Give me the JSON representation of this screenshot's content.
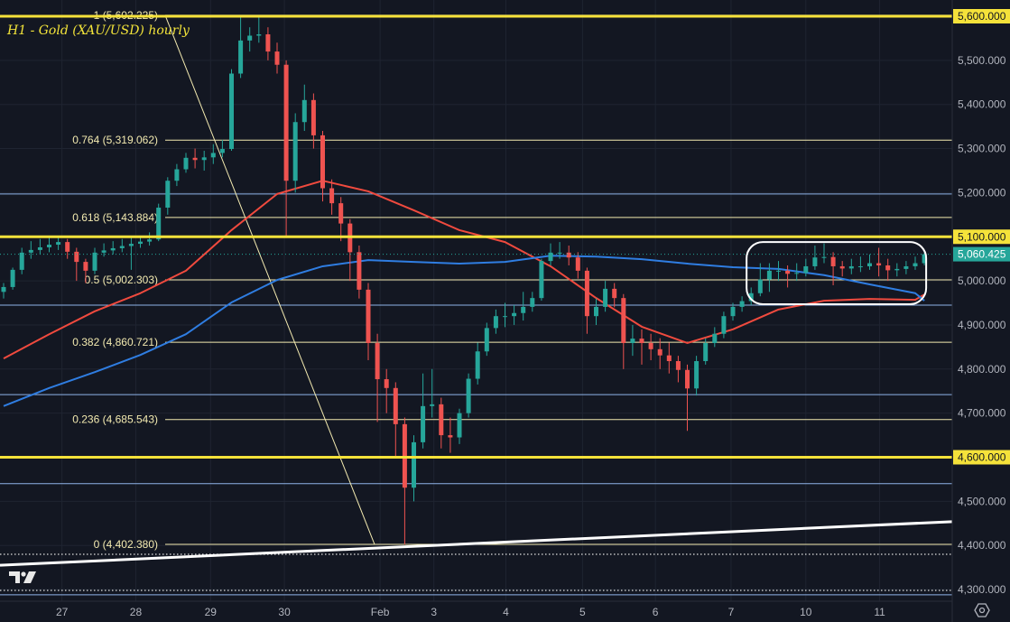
{
  "chart_data": {
    "type": "candlestick",
    "title": "H1 - Gold (XAU/USD) hourly",
    "ylim": [
      4280,
      5630
    ],
    "y_ticks": [
      5600,
      5500,
      5400,
      5300,
      5200,
      5100,
      5000,
      4900,
      4800,
      4700,
      4600,
      4500,
      4400,
      4300
    ],
    "y_tick_labels": [
      "5,600.000",
      "5,500.000",
      "5,400.000",
      "5,300.000",
      "5,200.000",
      "5,100.000",
      "5,000.000",
      "4,900.000",
      "4,800.000",
      "4,700.000",
      "4,600.000",
      "4,500.000",
      "4,400.000",
      "4,300.000"
    ],
    "x_ticks": [
      {
        "label": "27",
        "bar": 6.4
      },
      {
        "label": "28",
        "bar": 14.5
      },
      {
        "label": "29",
        "bar": 22.7
      },
      {
        "label": "30",
        "bar": 30.8
      },
      {
        "label": "Feb",
        "bar": 41.3
      },
      {
        "label": "3",
        "bar": 47.2
      },
      {
        "label": "4",
        "bar": 55.1
      },
      {
        "label": "5",
        "bar": 63.5
      },
      {
        "label": "6",
        "bar": 71.5
      },
      {
        "label": "7",
        "bar": 79.8
      },
      {
        "label": "10",
        "bar": 88
      },
      {
        "label": "11",
        "bar": 96.1
      }
    ],
    "grid": true,
    "colors": {
      "background": "#131722",
      "up": "#26a69a",
      "down": "#ef5350",
      "grid": "#1f2431",
      "axis_text": "#b2b5be",
      "level": "#f5e23a",
      "fib": "#f3eab0",
      "blue_level": "#8fb3e8",
      "ma_red": "#f04a3e",
      "ma_blue": "#2f7de1",
      "trend": "#ffffff",
      "last_price": "#26a69a"
    },
    "ohlc": [
      [
        4975,
        4995,
        4960,
        4986
      ],
      [
        4986,
        5030,
        4980,
        5025
      ],
      [
        5025,
        5075,
        5015,
        5064
      ],
      [
        5064,
        5090,
        5050,
        5070
      ],
      [
        5070,
        5095,
        5060,
        5076
      ],
      [
        5076,
        5098,
        5065,
        5082
      ],
      [
        5082,
        5100,
        5070,
        5088
      ],
      [
        5088,
        5095,
        5050,
        5066
      ],
      [
        5066,
        5075,
        5000,
        5043
      ],
      [
        5043,
        5050,
        4995,
        5023
      ],
      [
        5023,
        5075,
        5015,
        5064
      ],
      [
        5064,
        5085,
        5055,
        5069
      ],
      [
        5069,
        5090,
        5060,
        5074
      ],
      [
        5074,
        5095,
        5065,
        5079
      ],
      [
        5079,
        5100,
        5025,
        5084
      ],
      [
        5084,
        5100,
        5075,
        5089
      ],
      [
        5089,
        5110,
        5080,
        5094
      ],
      [
        5094,
        5175,
        5090,
        5166
      ],
      [
        5166,
        5235,
        5150,
        5227
      ],
      [
        5227,
        5265,
        5215,
        5253
      ],
      [
        5253,
        5290,
        5245,
        5279
      ],
      [
        5279,
        5300,
        5255,
        5274
      ],
      [
        5274,
        5295,
        5250,
        5280
      ],
      [
        5280,
        5310,
        5265,
        5290
      ],
      [
        5290,
        5320,
        5280,
        5299
      ],
      [
        5299,
        5480,
        5295,
        5470
      ],
      [
        5470,
        5600,
        5460,
        5545
      ],
      [
        5545,
        5575,
        5520,
        5556
      ],
      [
        5556,
        5602,
        5540,
        5559
      ],
      [
        5559,
        5575,
        5500,
        5520
      ],
      [
        5520,
        5540,
        5470,
        5490
      ],
      [
        5490,
        5500,
        5100,
        5227
      ],
      [
        5227,
        5380,
        5200,
        5360
      ],
      [
        5360,
        5445,
        5340,
        5410
      ],
      [
        5410,
        5425,
        5300,
        5330
      ],
      [
        5330,
        5340,
        5180,
        5210
      ],
      [
        5210,
        5230,
        5150,
        5176
      ],
      [
        5176,
        5190,
        5090,
        5130
      ],
      [
        5130,
        5140,
        5000,
        5065
      ],
      [
        5065,
        5080,
        4960,
        4980
      ],
      [
        4980,
        4995,
        4820,
        4859
      ],
      [
        4859,
        4880,
        4680,
        4777
      ],
      [
        4777,
        4800,
        4700,
        4757
      ],
      [
        4757,
        4770,
        4600,
        4675
      ],
      [
        4675,
        4690,
        4402,
        4531
      ],
      [
        4531,
        4650,
        4500,
        4634
      ],
      [
        4634,
        4790,
        4620,
        4716
      ],
      [
        4716,
        4800,
        4690,
        4720
      ],
      [
        4720,
        4735,
        4620,
        4650
      ],
      [
        4650,
        4690,
        4610,
        4645
      ],
      [
        4645,
        4710,
        4630,
        4700
      ],
      [
        4700,
        4790,
        4690,
        4778
      ],
      [
        4778,
        4860,
        4765,
        4840
      ],
      [
        4840,
        4905,
        4830,
        4893
      ],
      [
        4893,
        4935,
        4880,
        4920
      ],
      [
        4920,
        4950,
        4895,
        4920
      ],
      [
        4920,
        4945,
        4900,
        4927
      ],
      [
        4927,
        4975,
        4910,
        4941
      ],
      [
        4941,
        4975,
        4930,
        4961
      ],
      [
        4961,
        5050,
        4955,
        5045
      ],
      [
        5045,
        5085,
        5035,
        5064
      ],
      [
        5064,
        5088,
        5050,
        5064
      ],
      [
        5064,
        5080,
        5035,
        5053
      ],
      [
        5053,
        5065,
        5005,
        5023
      ],
      [
        5023,
        5030,
        4880,
        4920
      ],
      [
        4920,
        4960,
        4900,
        4941
      ],
      [
        4941,
        5000,
        4930,
        4982
      ],
      [
        4982,
        4995,
        4940,
        4961
      ],
      [
        4961,
        4970,
        4800,
        4859
      ],
      [
        4859,
        4900,
        4830,
        4869
      ],
      [
        4869,
        4890,
        4810,
        4859
      ],
      [
        4859,
        4880,
        4820,
        4845
      ],
      [
        4845,
        4870,
        4800,
        4831
      ],
      [
        4831,
        4860,
        4790,
        4818
      ],
      [
        4818,
        4830,
        4770,
        4798
      ],
      [
        4798,
        4810,
        4660,
        4756
      ],
      [
        4756,
        4830,
        4740,
        4818
      ],
      [
        4818,
        4870,
        4810,
        4859
      ],
      [
        4859,
        4895,
        4850,
        4880
      ],
      [
        4880,
        4930,
        4870,
        4920
      ],
      [
        4920,
        4950,
        4910,
        4941
      ],
      [
        4941,
        4965,
        4930,
        4954
      ],
      [
        4954,
        4985,
        4945,
        4972
      ],
      [
        4972,
        5040,
        4965,
        5003
      ],
      [
        5003,
        5040,
        4975,
        5023
      ],
      [
        5023,
        5045,
        5000,
        5023
      ],
      [
        5023,
        5035,
        4985,
        5016
      ],
      [
        5016,
        5040,
        5000,
        5018
      ],
      [
        5018,
        5050,
        5010,
        5033
      ],
      [
        5033,
        5080,
        5025,
        5053
      ],
      [
        5053,
        5085,
        5040,
        5054
      ],
      [
        5054,
        5065,
        4990,
        5033
      ],
      [
        5033,
        5045,
        5010,
        5028
      ],
      [
        5028,
        5050,
        5015,
        5033
      ],
      [
        5033,
        5055,
        5020,
        5033
      ],
      [
        5033,
        5060,
        5025,
        5040
      ],
      [
        5040,
        5075,
        5010,
        5035
      ],
      [
        5035,
        5050,
        5000,
        5024
      ],
      [
        5024,
        5040,
        5010,
        5027
      ],
      [
        5027,
        5045,
        5015,
        5033
      ],
      [
        5033,
        5055,
        5025,
        5040
      ],
      [
        5040,
        5068,
        5035,
        5060.425
      ]
    ],
    "moving_averages": [
      {
        "color": "#f04a3e",
        "every_bars": 5,
        "values": [
          4824,
          4879,
          4931,
          4972,
          5023,
          5115,
          5197,
          5227,
          5203,
          5160,
          5115,
          5088,
          5033,
          4961,
          4896,
          4859,
          4890,
          4935,
          4955,
          4959,
          4957,
          4969
        ]
      },
      {
        "color": "#2f7de1",
        "every_bars": 5,
        "values": [
          4716,
          4757,
          4793,
          4832,
          4879,
          4951,
          5002,
          5033,
          5047,
          5043,
          5039,
          5043,
          5057,
          5055,
          5049,
          5039,
          5031,
          5027,
          5013,
          4992,
          4972,
          4955
        ]
      }
    ],
    "key_levels": [
      {
        "price": 5600,
        "label": "5,600.000"
      },
      {
        "price": 5100,
        "label": "5,100.000"
      },
      {
        "price": 4600,
        "label": "4,600.000"
      }
    ],
    "blue_levels": [
      5197,
      4945,
      4742,
      4540,
      4288
    ],
    "dotted_levels": [
      4380,
      4298
    ],
    "fibonacci": {
      "from_bar": 18,
      "to_bar": 41,
      "levels": [
        {
          "ratio": "1",
          "price": 5602.225,
          "label": "1 (5,602.225)"
        },
        {
          "ratio": "0.764",
          "price": 5319.062,
          "label": "0.764 (5,319.062)"
        },
        {
          "ratio": "0.618",
          "price": 5143.884,
          "label": "0.618 (5,143.884)"
        },
        {
          "ratio": "0.5",
          "price": 5002.303,
          "label": "0.5 (5,002.303)"
        },
        {
          "ratio": "0.382",
          "price": 4860.721,
          "label": "0.382 (4,860.721)"
        },
        {
          "ratio": "0.236",
          "price": 4685.543,
          "label": "0.236 (4,685.543)"
        },
        {
          "ratio": "0",
          "price": 4402.38,
          "label": "0 (4,402.380)"
        }
      ]
    },
    "trendline": {
      "start_price": 4355,
      "end_price": 4454
    },
    "highlight_box": {
      "from_bar": 81.5,
      "to_bar": 101.2,
      "top_price": 5088,
      "bottom_price": 4947
    },
    "last_price": {
      "price": 5060.425,
      "label": "5,060.425"
    }
  },
  "icons": {
    "logo": "tradingview-logo",
    "settings": "settings-gear-icon"
  }
}
